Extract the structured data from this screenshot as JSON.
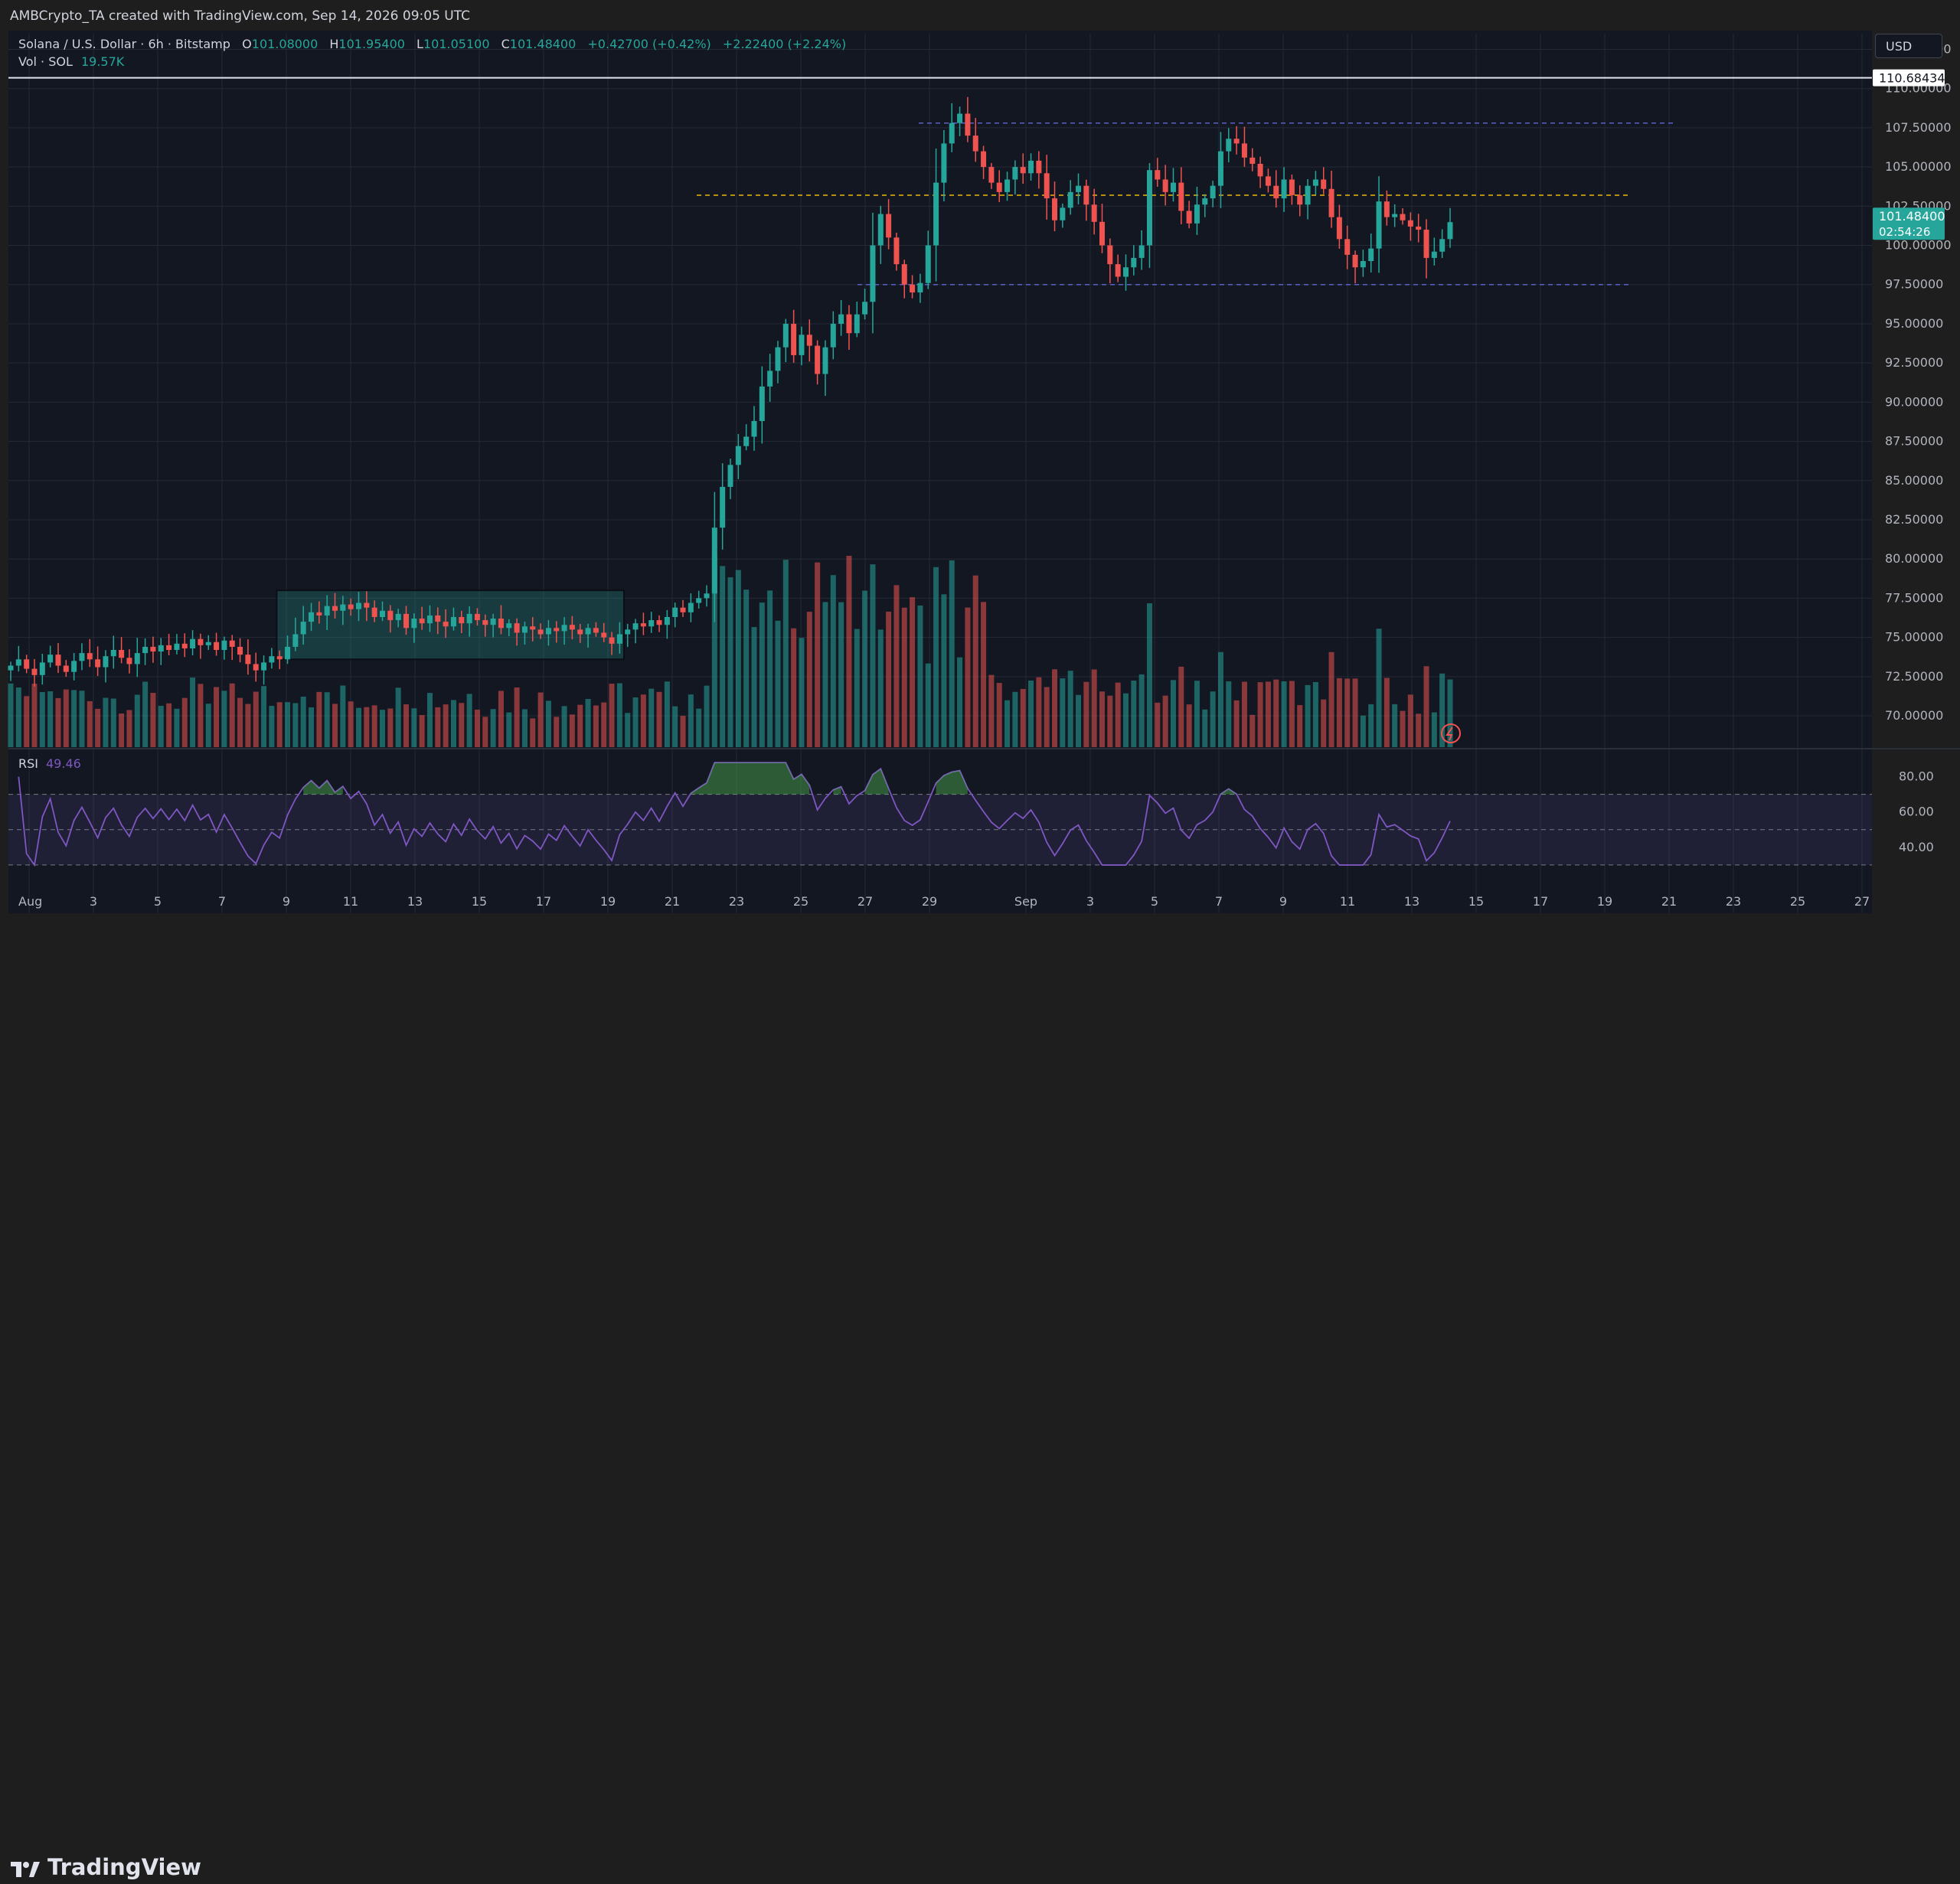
{
  "header": {
    "attribution": "AMBCrypto_TA created with TradingView.com, Sep 14, 2026 09:05 UTC"
  },
  "legend": {
    "symbol": "Solana / U.S. Dollar · 6h · Bitstamp",
    "o_label": "O",
    "o_value": "101.08000",
    "h_label": "H",
    "h_value": "101.95400",
    "l_label": "L",
    "l_value": "101.05100",
    "c_label": "C",
    "c_value": "101.48400",
    "change": "+0.42700 (+0.42%)",
    "change2": "+2.22400 (+2.24%)",
    "vol_label": "Vol · SOL",
    "vol_value": "19.57K"
  },
  "currency_button": "USD",
  "rsi": {
    "label": "RSI",
    "value": "49.46"
  },
  "branding": "TradingView",
  "colors": {
    "up": "#26a69a",
    "down": "#ef5350",
    "bg": "#131722",
    "grid": "#252a37",
    "text": "#d1d4dc",
    "rsi": "#7e57c2",
    "accent_line": "#f0b90b",
    "range_line": "#5b5fc7"
  },
  "chart_data": {
    "type": "candlestick",
    "interval": "6h",
    "start_date": "2026-08-01",
    "ylim": [
      68.0,
      113.5
    ],
    "y_ticks": [
      "112.50000",
      "110.00000",
      "107.50000",
      "105.00000",
      "102.50000",
      "100.00000",
      "97.50000",
      "95.00000",
      "92.50000",
      "90.00000",
      "87.50000",
      "85.00000",
      "82.50000",
      "80.00000",
      "77.50000",
      "75.00000",
      "72.50000",
      "70.00000"
    ],
    "x_ticks": [
      {
        "label": "Aug",
        "day": 1
      },
      {
        "label": "3",
        "day": 3
      },
      {
        "label": "5",
        "day": 5
      },
      {
        "label": "7",
        "day": 7
      },
      {
        "label": "9",
        "day": 9
      },
      {
        "label": "11",
        "day": 11
      },
      {
        "label": "13",
        "day": 13
      },
      {
        "label": "15",
        "day": 15
      },
      {
        "label": "17",
        "day": 17
      },
      {
        "label": "19",
        "day": 19
      },
      {
        "label": "21",
        "day": 21
      },
      {
        "label": "23",
        "day": 23
      },
      {
        "label": "25",
        "day": 25
      },
      {
        "label": "27",
        "day": 27
      },
      {
        "label": "29",
        "day": 29
      },
      {
        "label": "Sep",
        "day": 32
      },
      {
        "label": "3",
        "day": 34
      },
      {
        "label": "5",
        "day": 36
      },
      {
        "label": "7",
        "day": 38
      },
      {
        "label": "9",
        "day": 40
      },
      {
        "label": "11",
        "day": 42
      },
      {
        "label": "13",
        "day": 44
      },
      {
        "label": "15",
        "day": 46
      },
      {
        "label": "17",
        "day": 48
      },
      {
        "label": "19",
        "day": 50
      },
      {
        "label": "21",
        "day": 52
      },
      {
        "label": "23",
        "day": 54
      },
      {
        "label": "25",
        "day": 56
      },
      {
        "label": "27",
        "day": 58
      }
    ],
    "last_price": "101.48400",
    "countdown": "02:54:26",
    "resistance_line": {
      "price": 110.68434,
      "label": "110.68434"
    },
    "range_high": 107.8,
    "range_low": 97.5,
    "midline": 103.2,
    "consolidation_box": {
      "day_start": 8.7,
      "day_end": 19.5,
      "price_low": 73.6,
      "price_high": 78.0
    },
    "close_prices": [
      73.2,
      73.6,
      73.0,
      72.6,
      73.4,
      73.9,
      73.2,
      72.8,
      73.5,
      74.0,
      73.6,
      73.1,
      73.8,
      74.2,
      73.7,
      73.3,
      74.0,
      74.4,
      74.1,
      74.5,
      74.2,
      74.6,
      74.3,
      74.9,
      74.5,
      74.7,
      74.2,
      74.8,
      74.4,
      73.9,
      73.3,
      72.9,
      73.4,
      73.8,
      73.6,
      74.4,
      75.2,
      76.0,
      76.6,
      76.4,
      77.0,
      76.7,
      77.1,
      76.8,
      77.2,
      76.9,
      76.3,
      76.7,
      76.1,
      76.5,
      75.6,
      76.2,
      75.9,
      76.4,
      76.0,
      75.7,
      76.3,
      75.9,
      76.5,
      76.1,
      75.8,
      76.2,
      75.6,
      75.9,
      75.3,
      75.7,
      75.5,
      75.2,
      75.6,
      75.4,
      75.8,
      75.5,
      75.2,
      75.6,
      75.3,
      75.0,
      74.6,
      75.2,
      75.5,
      75.9,
      75.7,
      76.1,
      75.8,
      76.3,
      76.9,
      76.6,
      77.2,
      77.5,
      77.8,
      82.0,
      84.6,
      86.0,
      87.2,
      87.8,
      88.8,
      91.0,
      92.0,
      93.5,
      95.0,
      93.0,
      94.3,
      93.6,
      91.8,
      93.5,
      95.0,
      95.6,
      94.4,
      95.6,
      96.4,
      100.0,
      102.0,
      100.5,
      98.8,
      97.5,
      97.0,
      97.6,
      100.0,
      104.0,
      106.5,
      107.8,
      108.4,
      107.0,
      106.0,
      105.0,
      104.0,
      103.4,
      104.2,
      105.0,
      104.6,
      105.4,
      104.6,
      103.0,
      101.6,
      102.4,
      103.4,
      103.8,
      102.6,
      101.5,
      100.0,
      98.8,
      98.0,
      98.6,
      99.2,
      100.0,
      104.8,
      104.2,
      103.4,
      104.0,
      102.2,
      101.4,
      102.6,
      103.0,
      103.8,
      106.0,
      106.8,
      106.5,
      105.6,
      105.2,
      104.4,
      103.8,
      103.0,
      104.2,
      103.2,
      102.6,
      103.8,
      104.2,
      103.6,
      101.8,
      100.4,
      99.4,
      98.6,
      99.0,
      99.8,
      102.8,
      101.8,
      102.0,
      101.6,
      101.2,
      101.0,
      99.2,
      99.6,
      100.4,
      101.48
    ]
  }
}
